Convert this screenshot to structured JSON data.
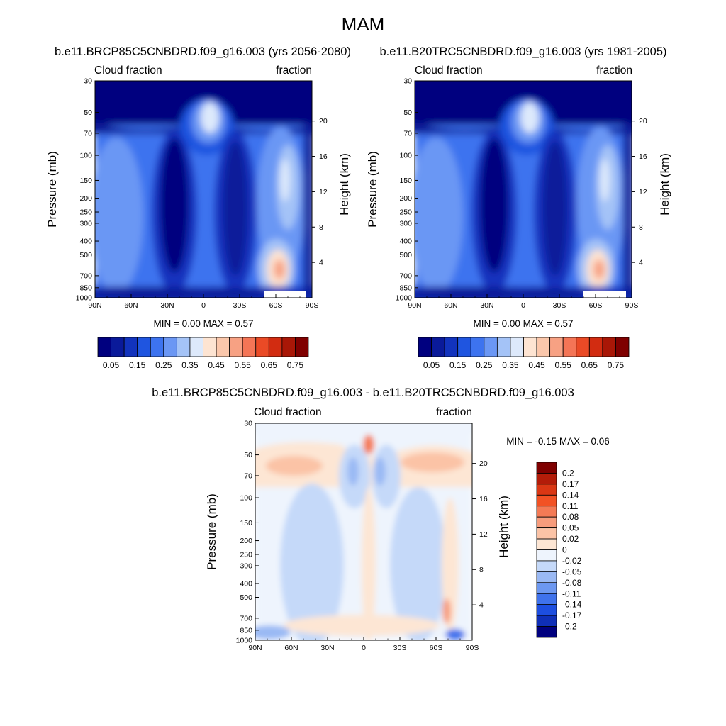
{
  "figure": {
    "title": "MAM",
    "panels": [
      {
        "case_title": "b.e11.BRCP85C5CNBDRD.f09_g16.003 (yrs 2056-2080)",
        "left_label": "Cloud fraction",
        "right_label": "fraction",
        "ylabel": "Pressure (mb)",
        "ylabel_right": "Height (km)",
        "minmax": "MIN =   0.00  MAX =   0.57"
      },
      {
        "case_title": "b.e11.B20TRC5CNBDRD.f09_g16.003 (yrs 1981-2005)",
        "left_label": "Cloud fraction",
        "right_label": "fraction",
        "ylabel": "Pressure (mb)",
        "ylabel_right": "Height (km)",
        "minmax": "MIN =   0.00  MAX =   0.57"
      },
      {
        "case_title": "b.e11.BRCP85C5CNBDRD.f09_g16.003 - b.e11.B20TRC5CNBDRD.f09_g16.003",
        "left_label": "Cloud fraction",
        "right_label": "fraction",
        "ylabel": "Pressure (mb)",
        "ylabel_right": "Height (km)",
        "minmax": "MIN =  -0.15  MAX =   0.06"
      }
    ],
    "colorbar_abs": {
      "orientation": "horizontal",
      "labels": [
        "0.05",
        "0.15",
        "0.25",
        "0.35",
        "0.45",
        "0.55",
        "0.65",
        "0.75"
      ],
      "colors": [
        "#00007f",
        "#0a1a9a",
        "#1233bd",
        "#1f55e0",
        "#3d73ef",
        "#6b97f4",
        "#a4c3f7",
        "#dde9fb",
        "#fde4d2",
        "#fbc7ab",
        "#f7a183",
        "#f47556",
        "#ea4a26",
        "#d22c11",
        "#a91707",
        "#7f0000"
      ]
    },
    "colorbar_diff": {
      "orientation": "vertical",
      "labels": [
        "0.2",
        "0.17",
        "0.14",
        "0.11",
        "0.08",
        "0.05",
        "0.02",
        "0",
        "-0.02",
        "-0.05",
        "-0.08",
        "-0.11",
        "-0.14",
        "-0.17",
        "-0.2"
      ],
      "colors": [
        "#7f0000",
        "#b31c09",
        "#da3714",
        "#f25224",
        "#f47a55",
        "#f79c7c",
        "#fbc3a6",
        "#fde6d4",
        "#eef4fd",
        "#c5d9f9",
        "#9ab9f4",
        "#6d98f1",
        "#3f72ec",
        "#1d4ee0",
        "#0f2fb8",
        "#00007f"
      ]
    },
    "chart_data": [
      {
        "type": "heatmap",
        "title": "b.e11.BRCP85C5CNBDRD.f09_g16.003 (yrs 2056-2080)",
        "xlabel": "",
        "ylabel": "Pressure (mb)",
        "y2label": "Height (km)",
        "x_ticks": [
          "90N",
          "60N",
          "30N",
          "0",
          "30S",
          "60S",
          "90S"
        ],
        "y_ticks": [
          30,
          50,
          70,
          100,
          150,
          200,
          250,
          300,
          400,
          500,
          700,
          850,
          1000
        ],
        "y2_ticks": [
          20,
          16,
          12,
          8,
          4
        ],
        "ylim": [
          1000,
          30
        ],
        "value_range": [
          0.0,
          0.57
        ]
      },
      {
        "type": "heatmap",
        "title": "b.e11.B20TRC5CNBDRD.f09_g16.003 (yrs 1981-2005)",
        "xlabel": "",
        "ylabel": "Pressure (mb)",
        "y2label": "Height (km)",
        "x_ticks": [
          "90N",
          "60N",
          "30N",
          "0",
          "30S",
          "60S",
          "90S"
        ],
        "y_ticks": [
          30,
          50,
          70,
          100,
          150,
          200,
          250,
          300,
          400,
          500,
          700,
          850,
          1000
        ],
        "y2_ticks": [
          20,
          16,
          12,
          8,
          4
        ],
        "ylim": [
          1000,
          30
        ],
        "value_range": [
          0.0,
          0.57
        ]
      },
      {
        "type": "heatmap",
        "title": "b.e11.BRCP85C5CNBDRD.f09_g16.003 - b.e11.B20TRC5CNBDRD.f09_g16.003",
        "xlabel": "",
        "ylabel": "Pressure (mb)",
        "y2label": "Height (km)",
        "x_ticks": [
          "90N",
          "60N",
          "30N",
          "0",
          "30S",
          "60S",
          "90S"
        ],
        "y_ticks": [
          30,
          50,
          70,
          100,
          150,
          200,
          250,
          300,
          400,
          500,
          700,
          850,
          1000
        ],
        "y2_ticks": [
          20,
          16,
          12,
          8,
          4
        ],
        "ylim": [
          1000,
          30
        ],
        "value_range": [
          -0.15,
          0.06
        ]
      }
    ]
  }
}
